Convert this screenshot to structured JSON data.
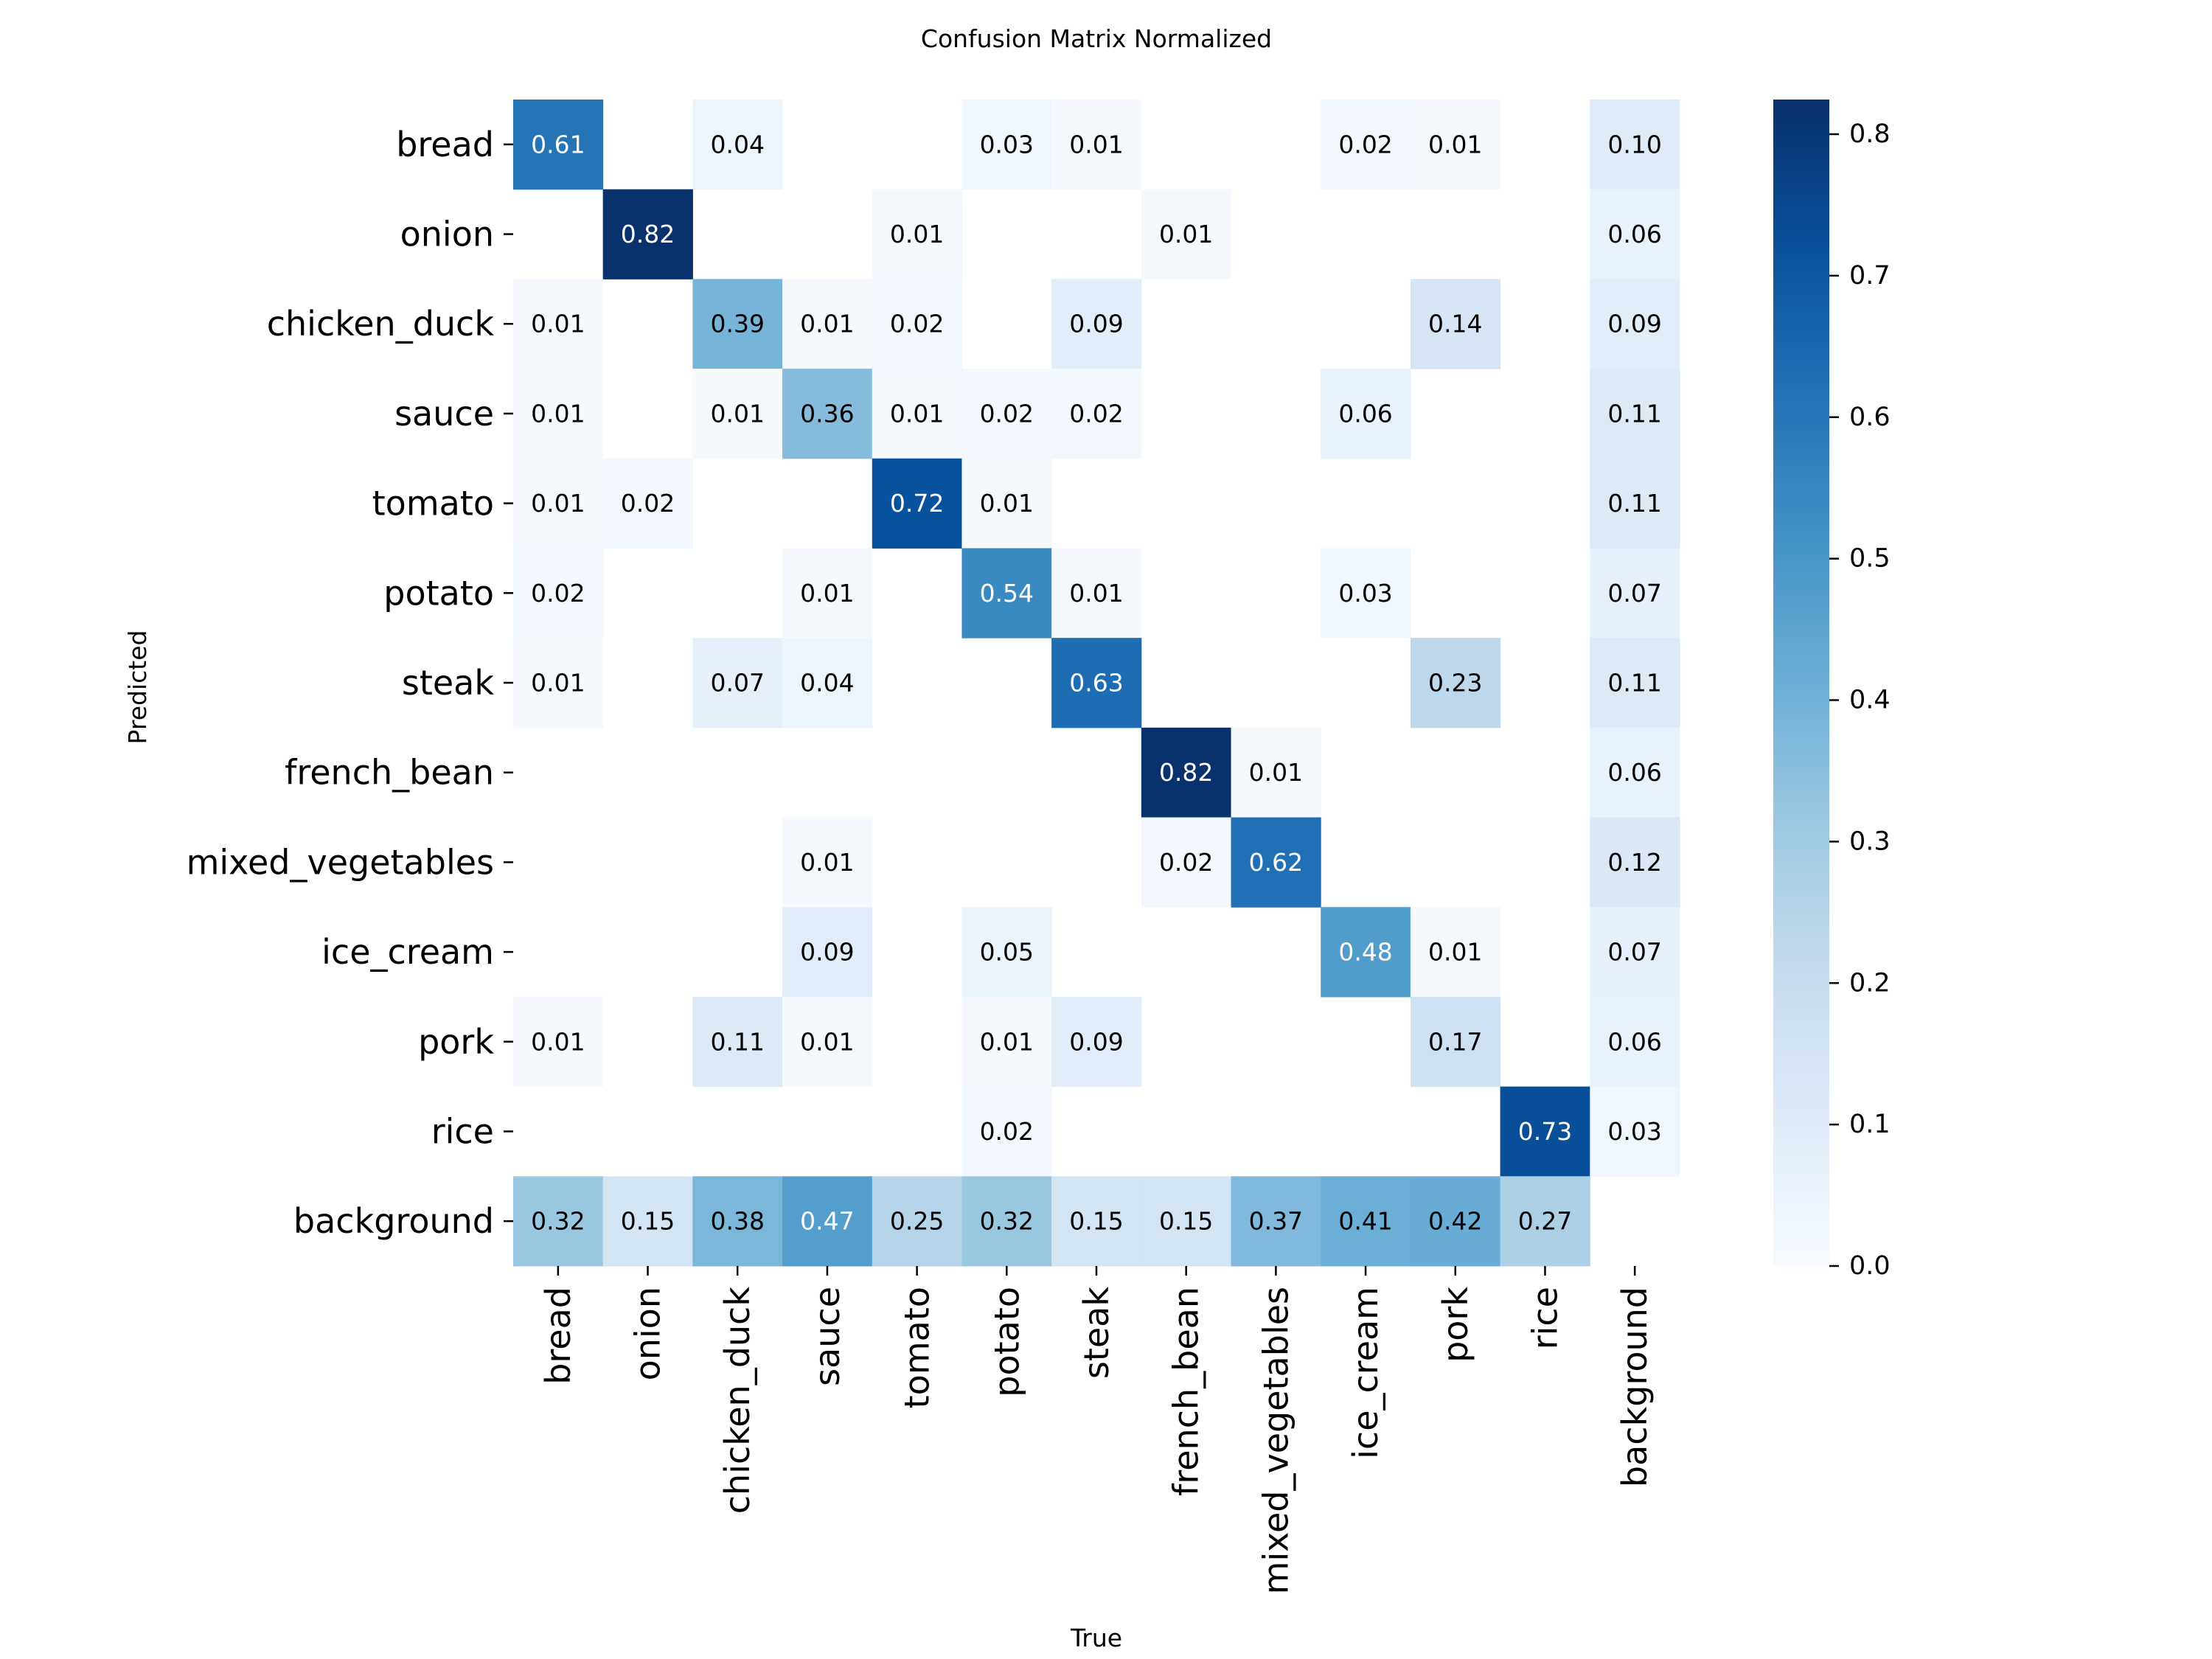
{
  "chart_data": {
    "type": "heatmap",
    "title": "Confusion Matrix Normalized",
    "xlabel": "True",
    "ylabel": "Predicted",
    "row_labels": [
      "bread",
      "onion",
      "chicken_duck",
      "sauce",
      "tomato",
      "potato",
      "steak",
      "french_bean",
      "mixed_vegetables",
      "ice_cream",
      "pork",
      "rice",
      "background"
    ],
    "col_labels": [
      "bread",
      "onion",
      "chicken_duck",
      "sauce",
      "tomato",
      "potato",
      "steak",
      "french_bean",
      "mixed_vegetables",
      "ice_cream",
      "pork",
      "rice",
      "background"
    ],
    "values": [
      [
        0.61,
        null,
        0.04,
        null,
        null,
        0.03,
        0.01,
        null,
        null,
        0.02,
        0.01,
        null,
        0.1
      ],
      [
        null,
        0.82,
        null,
        null,
        0.01,
        null,
        null,
        0.01,
        null,
        null,
        null,
        null,
        0.06
      ],
      [
        0.01,
        null,
        0.39,
        0.01,
        0.02,
        null,
        0.09,
        null,
        null,
        null,
        0.14,
        null,
        0.09
      ],
      [
        0.01,
        null,
        0.01,
        0.36,
        0.01,
        0.02,
        0.02,
        null,
        null,
        0.06,
        null,
        null,
        0.11
      ],
      [
        0.01,
        0.02,
        null,
        null,
        0.72,
        0.01,
        null,
        null,
        null,
        null,
        null,
        null,
        0.11
      ],
      [
        0.02,
        null,
        null,
        0.01,
        null,
        0.54,
        0.01,
        null,
        null,
        0.03,
        null,
        null,
        0.07
      ],
      [
        0.01,
        null,
        0.07,
        0.04,
        null,
        null,
        0.63,
        null,
        null,
        null,
        0.23,
        null,
        0.11
      ],
      [
        null,
        null,
        null,
        null,
        null,
        null,
        null,
        0.82,
        0.01,
        null,
        null,
        null,
        0.06
      ],
      [
        null,
        null,
        null,
        0.01,
        null,
        null,
        null,
        0.02,
        0.62,
        null,
        null,
        null,
        0.12
      ],
      [
        null,
        null,
        null,
        0.09,
        null,
        0.05,
        null,
        null,
        null,
        0.48,
        0.01,
        null,
        0.07
      ],
      [
        0.01,
        null,
        0.11,
        0.01,
        null,
        0.01,
        0.09,
        null,
        null,
        null,
        0.17,
        null,
        0.06
      ],
      [
        null,
        null,
        null,
        null,
        null,
        0.02,
        null,
        null,
        null,
        null,
        null,
        0.73,
        0.03
      ],
      [
        0.32,
        0.15,
        0.38,
        0.47,
        0.25,
        0.32,
        0.15,
        0.15,
        0.37,
        0.41,
        0.42,
        0.27,
        null
      ]
    ],
    "colormap": "Blues",
    "colorbar": {
      "range": [
        0,
        0.8245
      ],
      "ticks": [
        0.0,
        0.1,
        0.2,
        0.3,
        0.4,
        0.5,
        0.6,
        0.7,
        0.8
      ],
      "tick_labels": [
        "0.0",
        "0.1",
        "0.2",
        "0.3",
        "0.4",
        "0.5",
        "0.6",
        "0.7",
        "0.8"
      ],
      "placement": "right"
    },
    "grid": false,
    "colors": [
      "#f7fbff",
      "#deebf7",
      "#c6dbef",
      "#9ecae1",
      "#6baed6",
      "#4292c6",
      "#2171b5",
      "#08519c",
      "#08306b"
    ]
  }
}
